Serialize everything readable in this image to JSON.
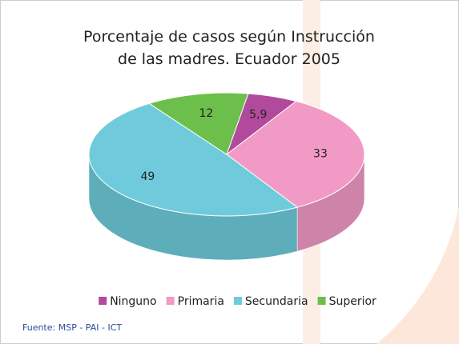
{
  "chart_data": {
    "type": "pie3d",
    "title": "Porcentaje de casos según Instrucción de las madres. Ecuador 2005",
    "categories": [
      "Ninguno",
      "Primaria",
      "Secundaria",
      "Superior"
    ],
    "values": [
      5.9,
      33,
      49,
      12
    ],
    "value_labels": [
      "5,9",
      "33",
      "49",
      "12"
    ],
    "colors": [
      "#b14a9c",
      "#f29ac6",
      "#6fcbdc",
      "#6cbf4b"
    ],
    "legend": "bottom",
    "source": "Fuente: MSP - PAI - ICT"
  }
}
